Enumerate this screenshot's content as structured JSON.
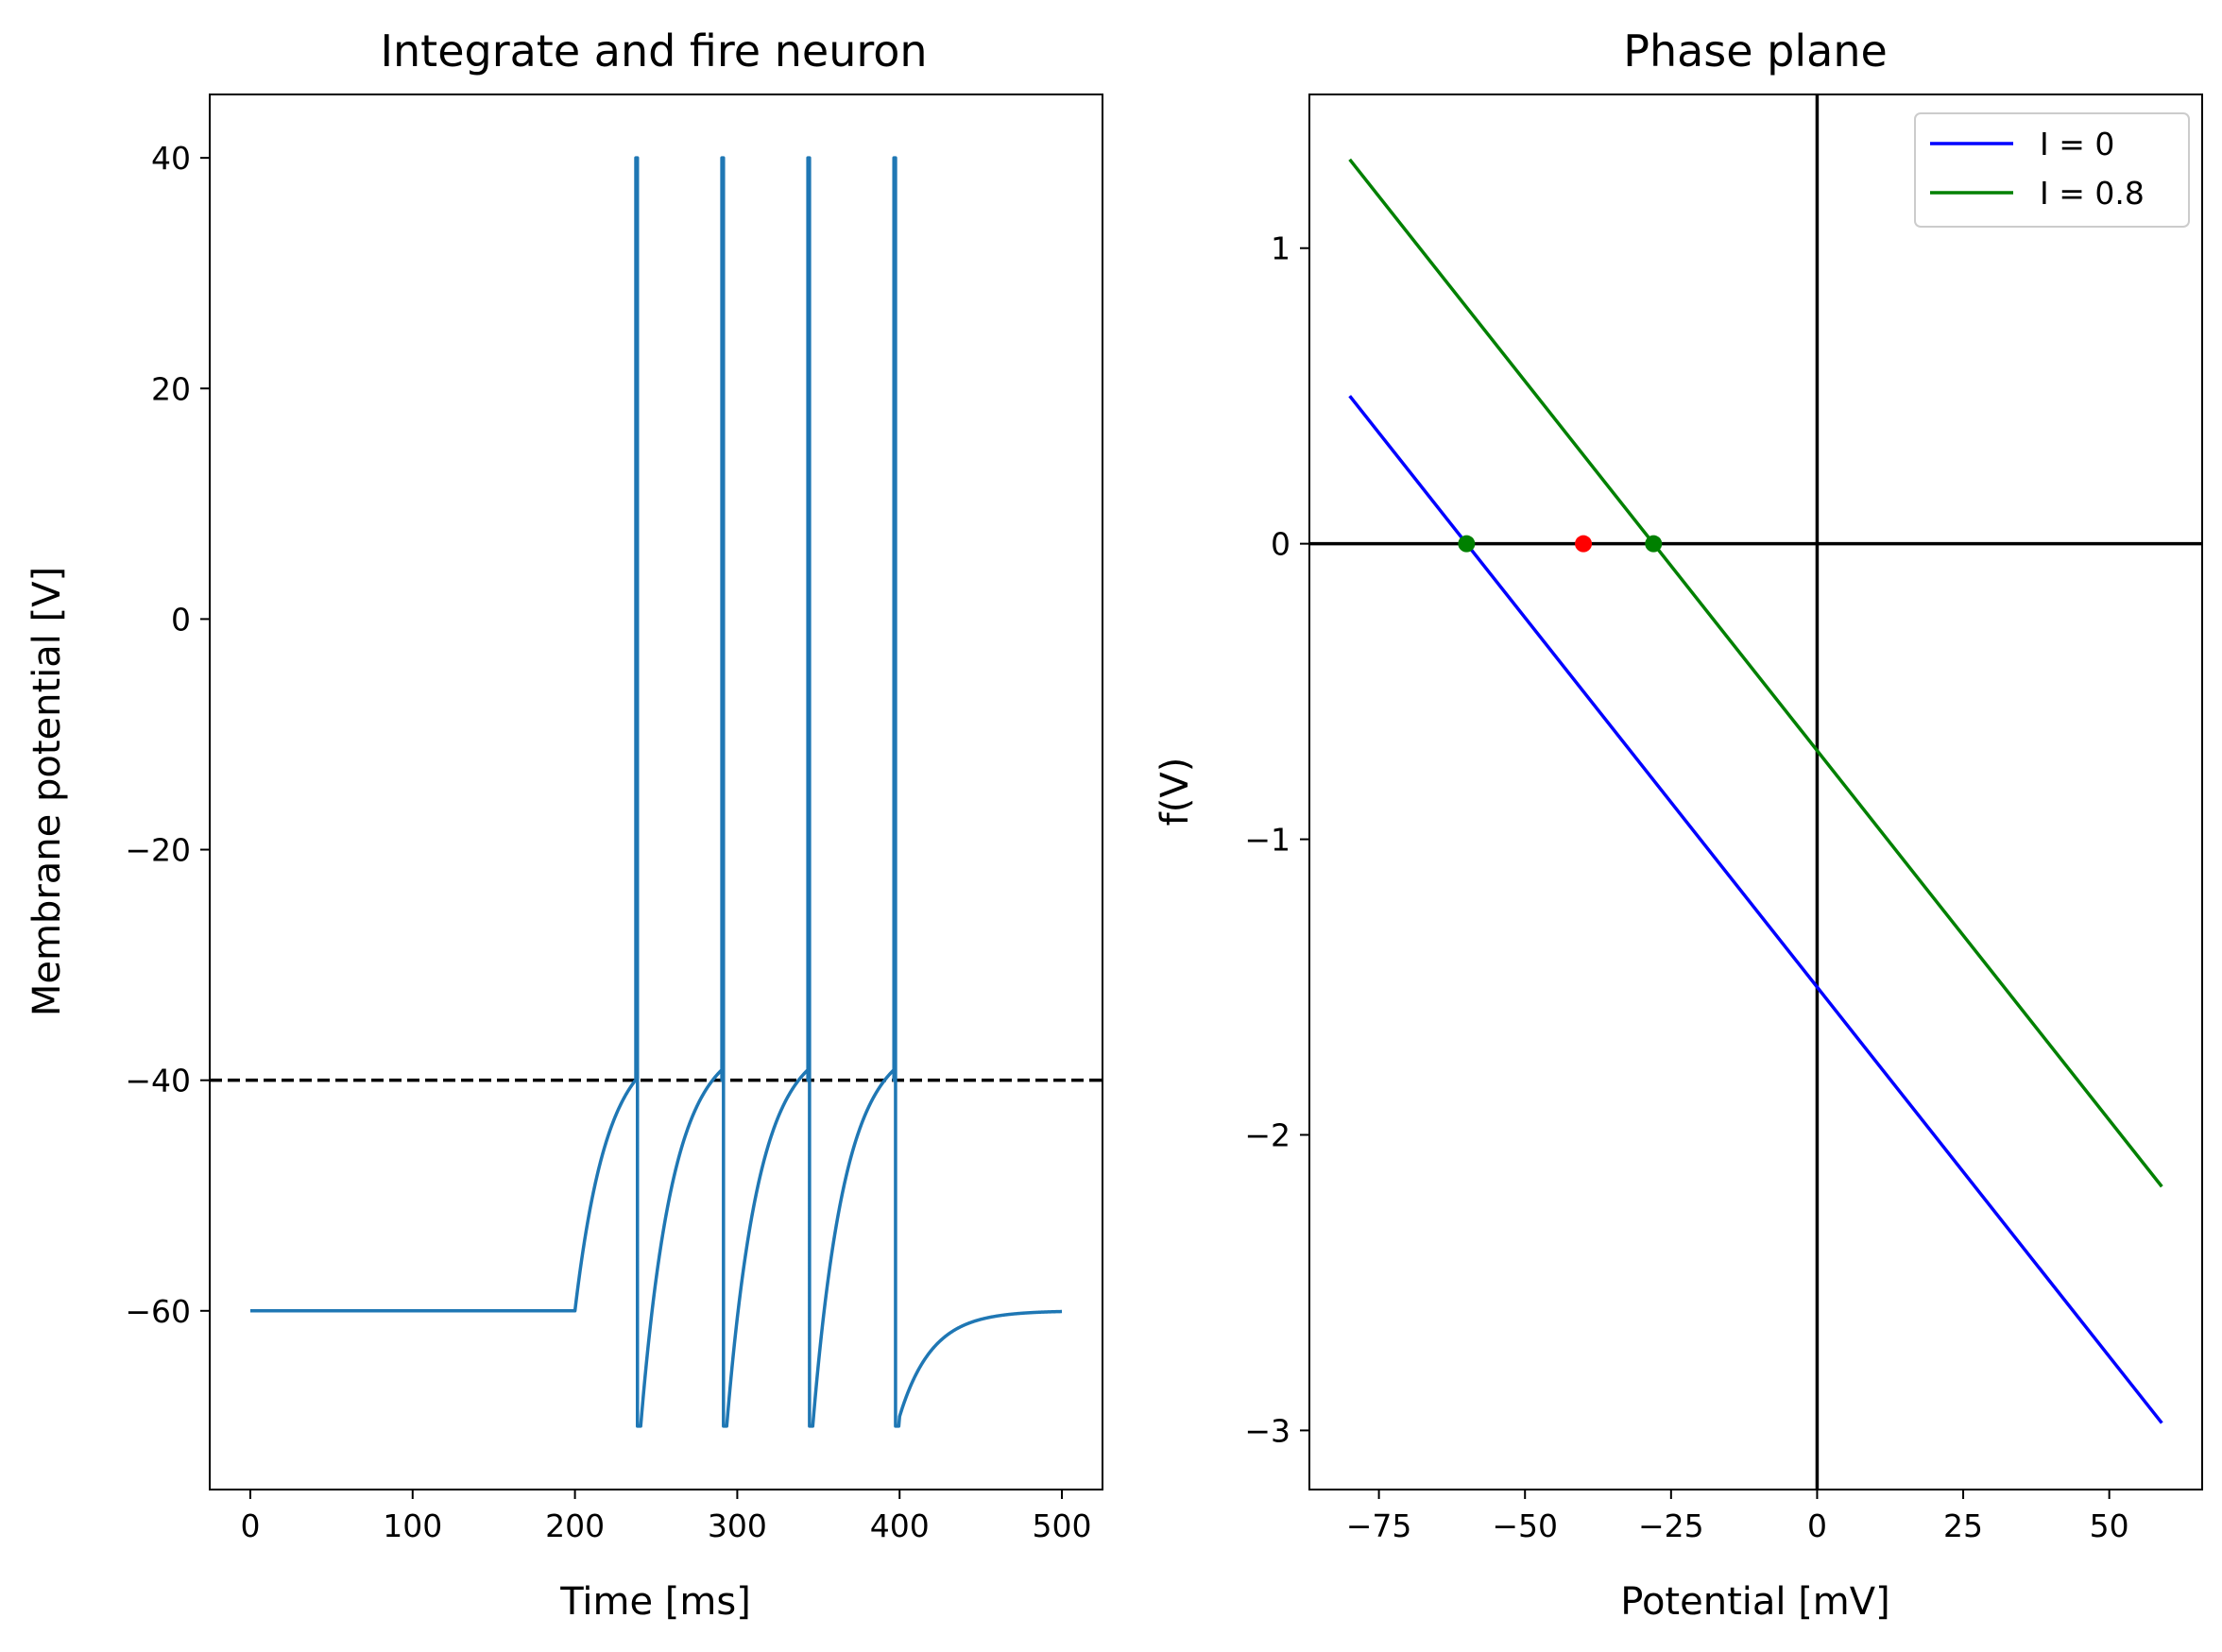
{
  "chart_data": [
    {
      "type": "line",
      "title": "Integrate and fire neuron",
      "xlabel": "Time [ms]",
      "ylabel": "Membrane potential [V]",
      "xlim": [
        -25,
        525
      ],
      "ylim": [
        -75.5,
        45.5
      ],
      "xticks": [
        0,
        100,
        200,
        300,
        400,
        500
      ],
      "yticks": [
        -60,
        -40,
        -20,
        0,
        20,
        40
      ],
      "grid": false,
      "series": [
        {
          "color": "#1f77b4",
          "style": "solid",
          "model": {
            "rest": -60,
            "threshold": -40,
            "reset": -70,
            "peak": 40,
            "stim_on": 200,
            "stim_off": 400,
            "t_end": 500,
            "spike_times": [
              237.5,
              290.5,
              343.5,
              396.5
            ]
          }
        }
      ],
      "reference_lines": [
        {
          "orientation": "horizontal",
          "y": -40,
          "color": "#000000",
          "style": "dashed"
        }
      ]
    },
    {
      "type": "line",
      "title": "Phase plane",
      "xlabel": "Potential [mV]",
      "ylabel": "f(V)",
      "xlim": [
        -86.9,
        65.9
      ],
      "ylim": [
        -3.2,
        1.52
      ],
      "xticks": [
        -75,
        -50,
        -25,
        0,
        25,
        50
      ],
      "yticks": [
        -3,
        -2,
        -1,
        0,
        1
      ],
      "grid": false,
      "legend_position": "upper-right",
      "series": [
        {
          "name": "I = 0",
          "color": "#0000ff",
          "x": [
            -80,
            59
          ],
          "y": [
            0.5,
            -2.975
          ]
        },
        {
          "name": "I = 0.8",
          "color": "#008000",
          "x": [
            -80,
            59
          ],
          "y": [
            1.3,
            -2.175
          ]
        }
      ],
      "reference_lines": [
        {
          "orientation": "horizontal",
          "y": 0,
          "color": "#000000",
          "style": "solid"
        },
        {
          "orientation": "vertical",
          "x": 0,
          "color": "#000000",
          "style": "solid"
        }
      ],
      "points": [
        {
          "x": -60,
          "y": 0,
          "color": "#008000"
        },
        {
          "x": -40,
          "y": 0,
          "color": "#ff0000"
        },
        {
          "x": -28,
          "y": 0,
          "color": "#008000"
        }
      ]
    }
  ]
}
